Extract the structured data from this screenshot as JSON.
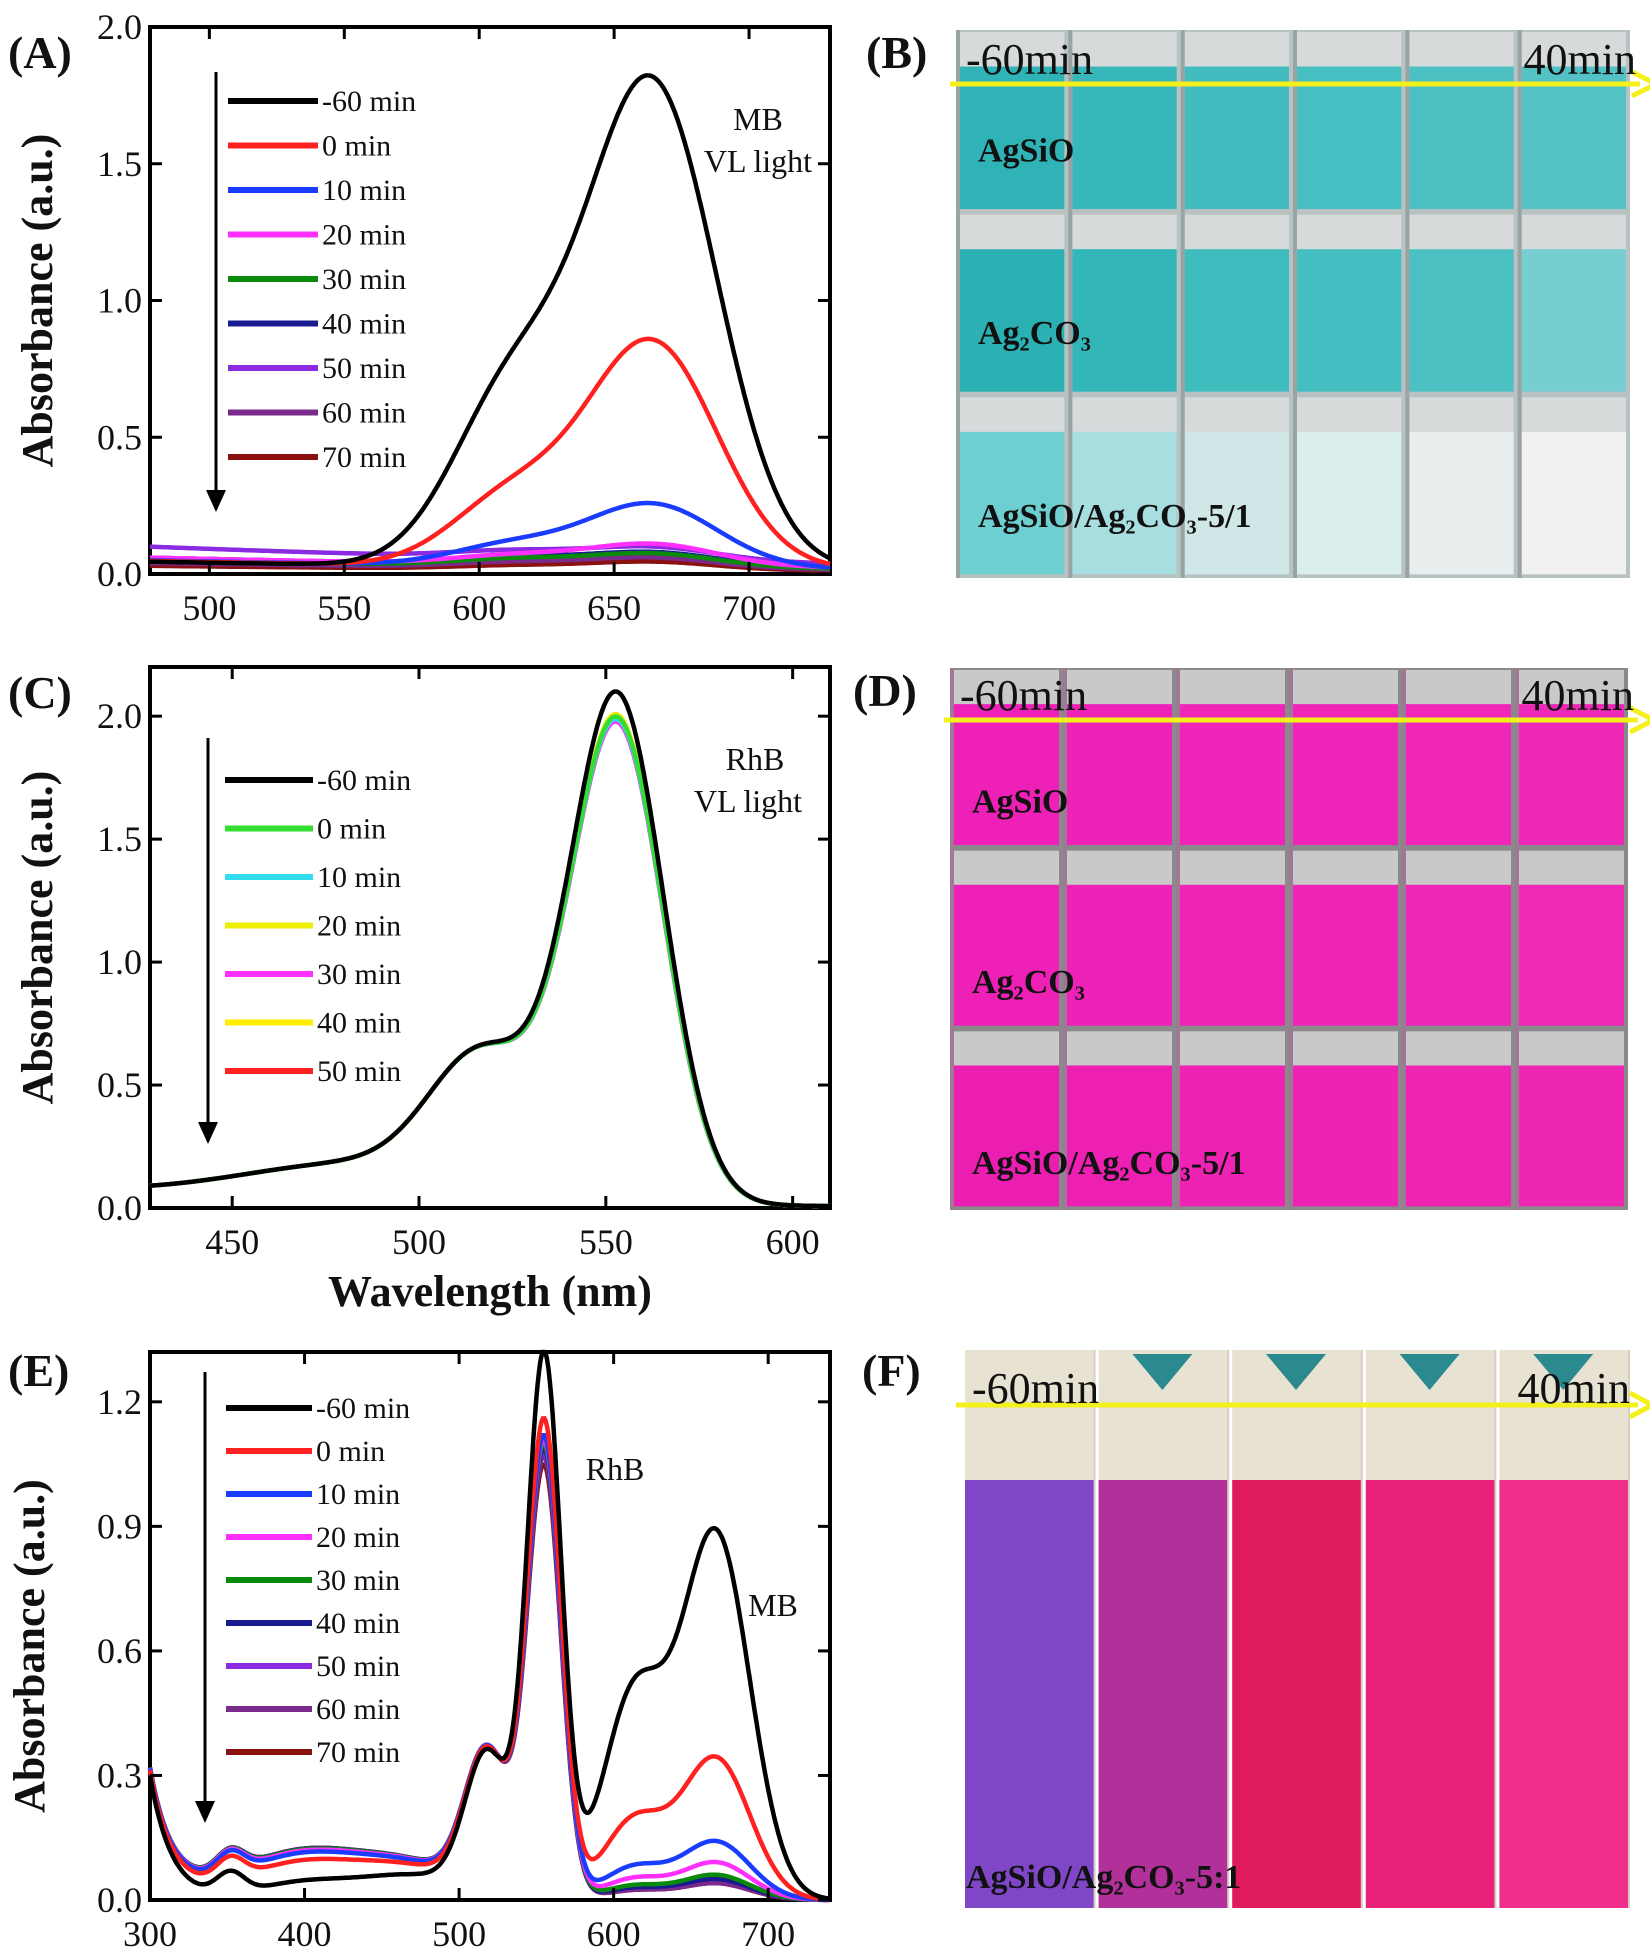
{
  "panels": {
    "A": {
      "label": "(A)"
    },
    "B": {
      "label": "(B)"
    },
    "C": {
      "label": "(C)"
    },
    "D": {
      "label": "(D)"
    },
    "E": {
      "label": "(E)"
    },
    "F": {
      "label": "(F)"
    }
  },
  "photos": {
    "B": {
      "start_label": "-60min",
      "end_label": "40min",
      "rows": [
        {
          "label": "AgSiO",
          "colors": [
            "#2fb3b6",
            "#37b7ba",
            "#43bcbf",
            "#47bec1",
            "#4cc0c3",
            "#53c2c5"
          ]
        },
        {
          "label": "Ag₂CO₃",
          "colors": [
            "#2bb1b4",
            "#33b6b8",
            "#3fbcbe",
            "#44bec0",
            "#4bc1c3",
            "#77ced0"
          ]
        },
        {
          "label": "AgSiO/Ag₂CO₃-5/1",
          "colors": [
            "#6ecfd1",
            "#a7dedf",
            "#cfe7e7",
            "#dbeeee",
            "#e8eeee",
            "#f0f1f0"
          ]
        }
      ]
    },
    "D": {
      "start_label": "-60min",
      "end_label": "40min",
      "rows": [
        {
          "label": "AgSiO",
          "colors": [
            "#ee20b8",
            "#ef22b8",
            "#ef24b8",
            "#ef24b8",
            "#ef26b7",
            "#ee28b6"
          ]
        },
        {
          "label": "Ag₂CO₃",
          "colors": [
            "#ee20b6",
            "#ef22b7",
            "#ef24b7",
            "#ef25b7",
            "#ef27b6",
            "#ee2ab6"
          ]
        },
        {
          "label": "AgSiO/Ag₂CO₃-5/1",
          "colors": [
            "#ec1eb2",
            "#ed20b3",
            "#ee22b3",
            "#ee23b3",
            "#ee25b2",
            "#ee27b2"
          ]
        }
      ]
    },
    "F": {
      "start_label": "-60min",
      "end_label": "40min",
      "label": "AgSiO/Ag₂CO₃-5:1",
      "colors": [
        "#8046c8",
        "#b1309a",
        "#e01a5e",
        "#e9207a",
        "#f02e8c"
      ]
    }
  },
  "chart_data": [
    {
      "id": "A",
      "type": "line",
      "xlabel": "",
      "ylabel": "Absorbance (a.u.)",
      "xlim": [
        478,
        730
      ],
      "ylim": [
        0,
        2.0
      ],
      "xticks": [
        "500",
        "550",
        "600",
        "650",
        "700"
      ],
      "yticks": [
        "0.0",
        "0.5",
        "1.0",
        "1.5",
        "2.0"
      ],
      "annotation": [
        "MB",
        "VL light"
      ],
      "series": [
        {
          "name": "-60 min",
          "color": "#000000",
          "peak": 1.76,
          "shoulder": 1.0,
          "base": 0.05,
          "low_base": 0.04
        },
        {
          "name": "0 min",
          "color": "#ff2020",
          "peak": 0.82,
          "shoulder": 0.4,
          "base": 0.05,
          "low_base": 0.045
        },
        {
          "name": "10 min",
          "color": "#1a3cff",
          "peak": 0.23,
          "shoulder": 0.12,
          "base": 0.05,
          "low_base": 0.05
        },
        {
          "name": "20 min",
          "color": "#ff30ff",
          "peak": 0.08,
          "shoulder": 0.05,
          "base": 0.06,
          "low_base": 0.06
        },
        {
          "name": "30 min",
          "color": "#0a8a0a",
          "peak": 0.05,
          "shoulder": 0.04,
          "base": 0.05,
          "low_base": 0.05
        },
        {
          "name": "40 min",
          "color": "#1a1a90",
          "peak": 0.05,
          "shoulder": 0.04,
          "base": 0.06,
          "low_base": 0.06
        },
        {
          "name": "50 min",
          "color": "#8a2be2",
          "peak": 0.05,
          "shoulder": 0.04,
          "base": 0.1,
          "low_base": 0.1
        },
        {
          "name": "60 min",
          "color": "#7a2a8a",
          "peak": 0.04,
          "shoulder": 0.03,
          "base": 0.04,
          "low_base": 0.04
        },
        {
          "name": "70 min",
          "color": "#8b1010",
          "peak": 0.03,
          "shoulder": 0.02,
          "base": 0.03,
          "low_base": 0.03
        }
      ]
    },
    {
      "id": "C",
      "type": "line",
      "xlabel": "Wavelength (nm)",
      "ylabel": "Absorbance (a.u.)",
      "xlim": [
        428,
        610
      ],
      "ylim": [
        0,
        2.2
      ],
      "xticks": [
        "450",
        "500",
        "550",
        "600"
      ],
      "yticks": [
        "0.0",
        "0.5",
        "1.0",
        "1.5",
        "2.0"
      ],
      "annotation": [
        "RhB",
        "VL light"
      ],
      "series": [
        {
          "name": "-60 min",
          "color": "#000000",
          "peak": 2.05
        },
        {
          "name": "0 min",
          "color": "#33dd33",
          "peak": 1.95
        },
        {
          "name": "10 min",
          "color": "#33ddee",
          "peak": 1.94
        },
        {
          "name": "20 min",
          "color": "#eeee00",
          "peak": 1.96
        },
        {
          "name": "30 min",
          "color": "#ff30ff",
          "peak": 1.93
        },
        {
          "name": "40 min",
          "color": "#ffee00",
          "peak": 1.94
        },
        {
          "name": "50 min",
          "color": "#ff2020",
          "peak": 1.93
        }
      ]
    },
    {
      "id": "E",
      "type": "line",
      "xlabel": "",
      "ylabel": "Absorbance (a.u.)",
      "xlim": [
        300,
        740
      ],
      "ylim": [
        0,
        1.32
      ],
      "xticks": [
        "300",
        "400",
        "500",
        "600",
        "700"
      ],
      "yticks": [
        "0.0",
        "0.3",
        "0.6",
        "0.9",
        "1.2"
      ],
      "annotation": [
        "RhB",
        "MB"
      ],
      "series": [
        {
          "name": "-60 min",
          "color": "#000000",
          "rhb": 1.3,
          "mb": 0.88
        },
        {
          "name": "0 min",
          "color": "#ff2020",
          "rhb": 1.14,
          "mb": 0.34
        },
        {
          "name": "10 min",
          "color": "#1a3cff",
          "rhb": 1.1,
          "mb": 0.14
        },
        {
          "name": "20 min",
          "color": "#ff30ff",
          "rhb": 1.09,
          "mb": 0.09
        },
        {
          "name": "30 min",
          "color": "#0a8a0a",
          "rhb": 1.08,
          "mb": 0.06
        },
        {
          "name": "40 min",
          "color": "#1a1a90",
          "rhb": 1.07,
          "mb": 0.05
        },
        {
          "name": "50 min",
          "color": "#8a2be2",
          "rhb": 1.06,
          "mb": 0.05
        },
        {
          "name": "60 min",
          "color": "#7a2a8a",
          "rhb": 1.05,
          "mb": 0.04
        },
        {
          "name": "70 min",
          "color": "#8b1010",
          "rhb": 1.03,
          "mb": 0.04
        }
      ]
    }
  ]
}
